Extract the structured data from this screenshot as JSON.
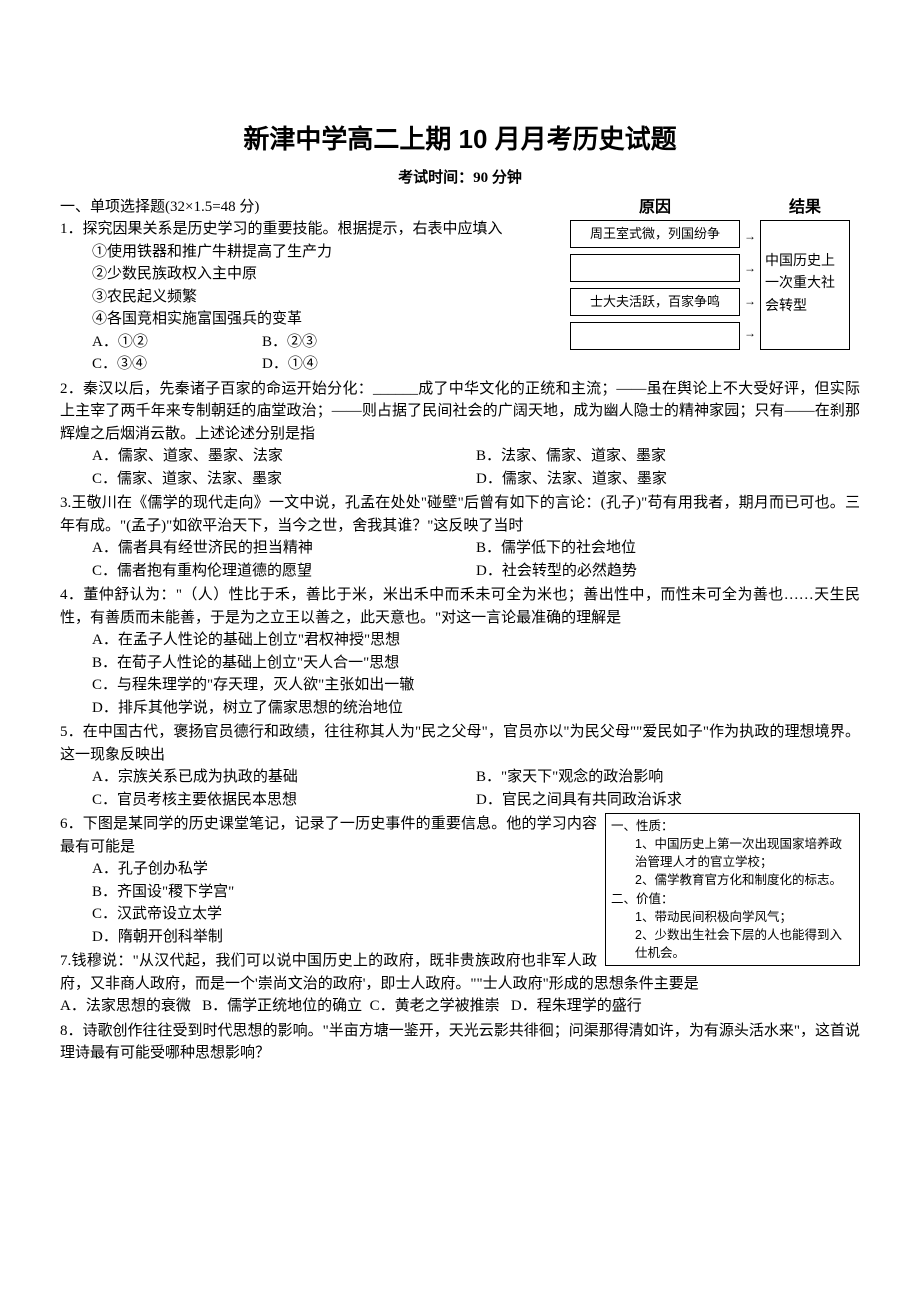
{
  "title": "新津中学高二上期 10 月月考历史试题",
  "subtitle": "考试时间：90 分钟",
  "section1_head": "一、单项选择题(32×1.5=48 分)",
  "diagram1": {
    "header_cause": "原因",
    "header_effect": "结果",
    "row1": "周王室式微，列国纷争",
    "row2": "",
    "row3": "士大夫活跃，百家争鸣",
    "row4": "",
    "effect": "中国历史上一次重大社会转型"
  },
  "q1": {
    "stem": "1．探究因果关系是历史学习的重要技能。根据提示，右表中应填入",
    "c1": "①使用铁器和推广牛耕提高了生产力",
    "c2": "②少数民族政权入主中原",
    "c3": "③农民起义频繁",
    "c4": "④各国竞相实施富国强兵的变革",
    "oA": "A．①②",
    "oB": "B．②③",
    "oC": "C．③④",
    "oD": "D．①④"
  },
  "q2": {
    "stem": "2．秦汉以后，先秦诸子百家的命运开始分化：______成了中华文化的正统和主流；——虽在舆论上不大受好评，但实际上主宰了两千年来专制朝廷的庙堂政治；——则占据了民间社会的广阔天地，成为幽人隐士的精神家园；只有——在刹那辉煌之后烟消云散。上述论述分别是指",
    "oA": "A．儒家、道家、墨家、法家",
    "oB": "B．法家、儒家、道家、墨家",
    "oC": "C．儒家、道家、法家、墨家",
    "oD": "D．儒家、法家、道家、墨家"
  },
  "q3": {
    "stem": "3.王敬川在《儒学的现代走向》一文中说，孔孟在处处\"碰壁\"后曾有如下的言论：(孔子)\"苟有用我者，期月而已可也。三年有成。\"(孟子)\"如欲平治天下，当今之世，舍我其谁？\"这反映了当时",
    "oA": "A．儒者具有经世济民的担当精神",
    "oB": "B．儒学低下的社会地位",
    "oC": "C．儒者抱有重构伦理道德的愿望",
    "oD": "D．社会转型的必然趋势"
  },
  "q4": {
    "stem": "4．董仲舒认为：\"（人）性比于禾，善比于米，米出禾中而禾未可全为米也；善出性中，而性未可全为善也……天生民性，有善质而未能善，于是为之立王以善之，此天意也。\"对这一言论最准确的理解是",
    "oA": "A．在孟子人性论的基础上创立\"君权神授\"思想",
    "oB": "B．在荀子人性论的基础上创立\"天人合一\"思想",
    "oC": "C．与程朱理学的\"存天理，灭人欲\"主张如出一辙",
    "oD": "D．排斥其他学说，树立了儒家思想的统治地位"
  },
  "q5": {
    "stem": "5．在中国古代，褒扬官员德行和政绩，往往称其人为\"民之父母\"，官员亦以\"为民父母\"\"爱民如子\"作为执政的理想境界。这一现象反映出",
    "oA": "A．宗族关系已成为执政的基础",
    "oB": "B．\"家天下\"观念的政治影响",
    "oC": "C．官员考核主要依据民本思想",
    "oD": "D．官民之间具有共同政治诉求"
  },
  "diagram2": {
    "l1": "一、性质：",
    "l2": "1、中国历史上第一次出现国家培养政治管理人才的官立学校；",
    "l3": "2、儒学教育官方化和制度化的标志。",
    "l4": "二、价值：",
    "l5": "1、带动民间积极向学风气；",
    "l6": "2、少数出生社会下层的人也能得到入仕机会。"
  },
  "q6": {
    "stem": "6．下图是某同学的历史课堂笔记，记录了一历史事件的重要信息。他的学习内容最有可能是",
    "oA": "A．孔子创办私学",
    "oB": "B．齐国设\"稷下学宫\"",
    "oC": "C．汉武帝设立太学",
    "oD": "D．隋朝开创科举制"
  },
  "q7": {
    "stem": "7.钱穆说：\"从汉代起，我们可以说中国历史上的政府，既非贵族政府也非军人政府，又非商人政府，而是一个'崇尚文治的政府'，即士人政府。\"\"士人政府\"形成的思想条件主要是",
    "oA": "A．法家思想的衰微",
    "oB": "B．儒学正统地位的确立",
    "oC": "C．黄老之学被推崇",
    "oD": "D．程朱理学的盛行"
  },
  "q8": {
    "stem": "8．诗歌创作往往受到时代思想的影响。\"半亩方塘一鉴开，天光云影共徘徊；问渠那得清如许，为有源头活水来\"，这首说理诗最有可能受哪种思想影响？"
  }
}
